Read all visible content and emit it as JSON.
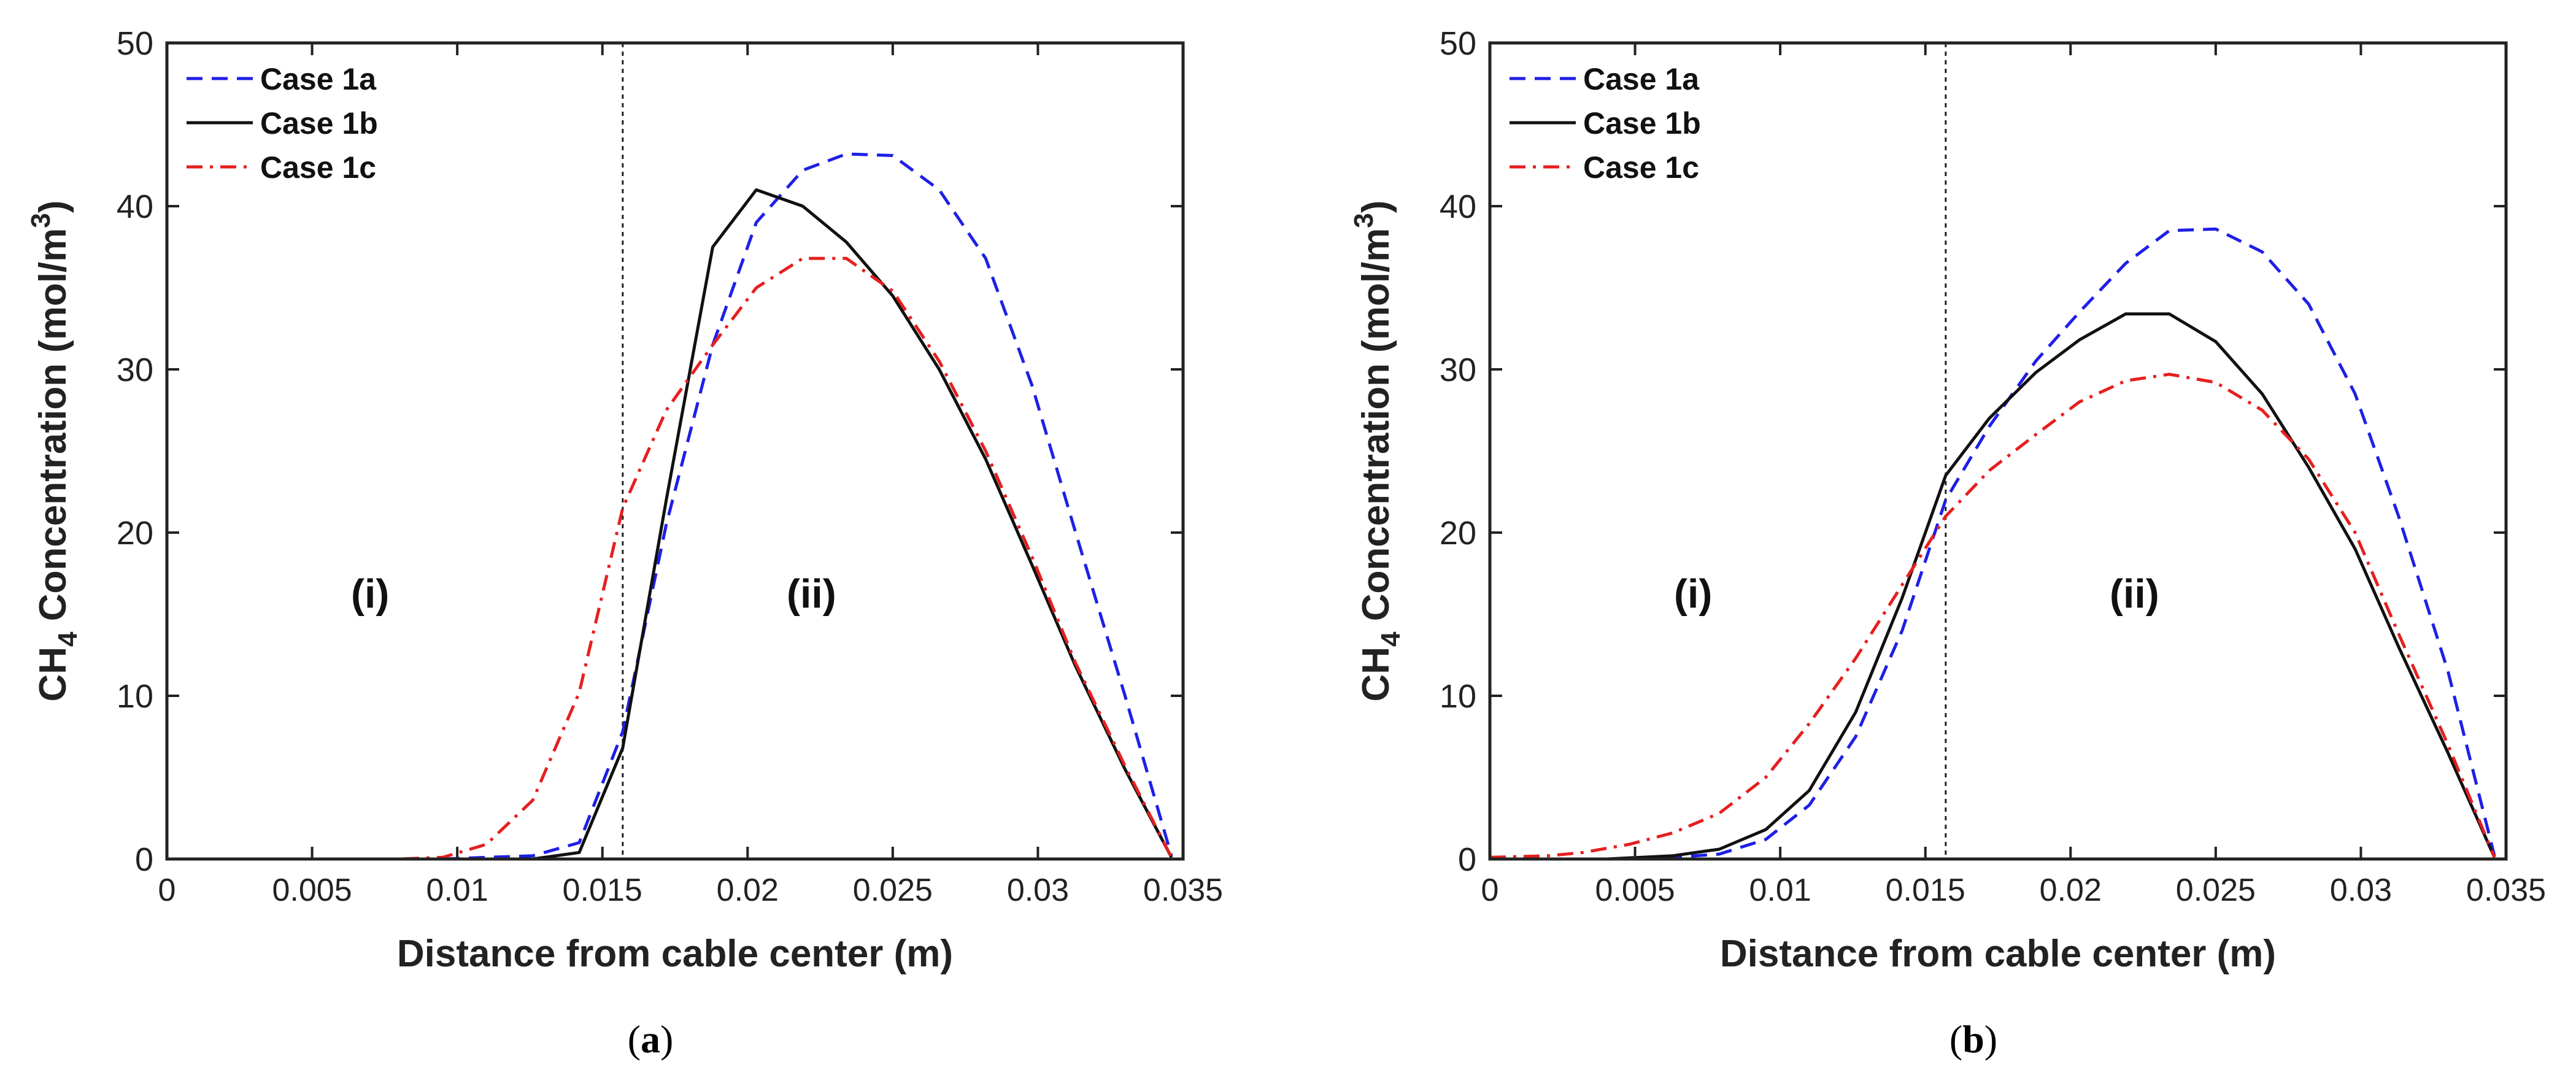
{
  "chart_data": [
    {
      "type": "line",
      "panel": "a",
      "caption_open": "(",
      "caption_letter": "a",
      "caption_close": ")",
      "xlabel": "Distance from cable center (m)",
      "ylabel_pre": "CH",
      "ylabel_sub": "4",
      "ylabel_mid": " Concentration (mol/m",
      "ylabel_sup": "3",
      "ylabel_post": ")",
      "xlim": [
        0,
        0.035
      ],
      "ylim": [
        0,
        50
      ],
      "xticks": [
        0,
        0.005,
        0.01,
        0.015,
        0.02,
        0.025,
        0.03,
        0.035
      ],
      "xtick_labels": [
        "0",
        "0.005",
        "0.01",
        "0.015",
        "0.02",
        "0.025",
        "0.03",
        "0.035"
      ],
      "yticks": [
        0,
        10,
        20,
        30,
        40,
        50
      ],
      "ytick_labels": [
        "0",
        "10",
        "20",
        "30",
        "40",
        "50"
      ],
      "boundary_x": 0.0157,
      "regions": [
        {
          "label": "(i)",
          "x": 0.007,
          "y": 16.3
        },
        {
          "label": "(ii)",
          "x": 0.0222,
          "y": 16.3
        }
      ],
      "legend_position": "top-left",
      "series": [
        {
          "name": "Case 1a",
          "color": "#1f1fe6",
          "style": "dashed",
          "x": [
            0,
            0.002,
            0.004,
            0.006,
            0.008,
            0.0095,
            0.011,
            0.0126,
            0.0142,
            0.0157,
            0.0172,
            0.0188,
            0.0203,
            0.0219,
            0.0234,
            0.025,
            0.0266,
            0.0282,
            0.0298,
            0.0313,
            0.033,
            0.0346
          ],
          "y": [
            0,
            0,
            0,
            0,
            0,
            0,
            0.1,
            0.2,
            1.0,
            7.8,
            20.5,
            31.5,
            39.0,
            42.2,
            43.2,
            43.1,
            41.0,
            36.8,
            29.0,
            20.0,
            10.0,
            0.2
          ]
        },
        {
          "name": "Case 1b",
          "color": "#111111",
          "style": "solid",
          "x": [
            0,
            0.002,
            0.004,
            0.006,
            0.008,
            0.0095,
            0.011,
            0.0126,
            0.0142,
            0.0157,
            0.0172,
            0.0188,
            0.0203,
            0.0219,
            0.0234,
            0.025,
            0.0266,
            0.0282,
            0.0298,
            0.0313,
            0.033,
            0.0346
          ],
          "y": [
            0,
            0,
            0,
            0,
            0,
            0,
            0,
            0,
            0.4,
            6.8,
            22.0,
            37.5,
            41.0,
            40.0,
            37.8,
            34.5,
            30.0,
            24.5,
            18.0,
            11.8,
            5.5,
            0.1
          ]
        },
        {
          "name": "Case 1c",
          "color": "#e61f1f",
          "style": "dashdot",
          "x": [
            0,
            0.002,
            0.004,
            0.006,
            0.008,
            0.0095,
            0.011,
            0.0126,
            0.0142,
            0.0157,
            0.0172,
            0.0188,
            0.0203,
            0.0219,
            0.0234,
            0.025,
            0.0266,
            0.0282,
            0.0298,
            0.0313,
            0.033,
            0.0346
          ],
          "y": [
            0,
            0,
            0,
            0,
            0,
            0.1,
            0.9,
            3.6,
            10.2,
            21.5,
            27.5,
            31.5,
            35.0,
            36.8,
            36.8,
            34.8,
            30.5,
            25.0,
            18.5,
            12.0,
            5.7,
            0.1
          ]
        }
      ]
    },
    {
      "type": "line",
      "panel": "b",
      "caption_open": "(",
      "caption_letter": "b",
      "caption_close": ")",
      "xlabel": "Distance from cable center (m)",
      "ylabel_pre": "CH",
      "ylabel_sub": "4",
      "ylabel_mid": " Concentration (mol/m",
      "ylabel_sup": "3",
      "ylabel_post": ")",
      "xlim": [
        0,
        0.035
      ],
      "ylim": [
        0,
        50
      ],
      "xticks": [
        0,
        0.005,
        0.01,
        0.015,
        0.02,
        0.025,
        0.03,
        0.035
      ],
      "xtick_labels": [
        "0",
        "0.005",
        "0.01",
        "0.015",
        "0.02",
        "0.025",
        "0.03",
        "0.035"
      ],
      "yticks": [
        0,
        10,
        20,
        30,
        40,
        50
      ],
      "ytick_labels": [
        "0",
        "10",
        "20",
        "30",
        "40",
        "50"
      ],
      "boundary_x": 0.0157,
      "regions": [
        {
          "label": "(i)",
          "x": 0.007,
          "y": 16.3
        },
        {
          "label": "(ii)",
          "x": 0.0222,
          "y": 16.3
        }
      ],
      "legend_position": "top-left",
      "series": [
        {
          "name": "Case 1a",
          "color": "#1f1fe6",
          "style": "dashed",
          "x": [
            0,
            0.002,
            0.004,
            0.0063,
            0.0079,
            0.0095,
            0.011,
            0.0126,
            0.0142,
            0.0157,
            0.0172,
            0.0188,
            0.0203,
            0.0219,
            0.0234,
            0.025,
            0.0266,
            0.0282,
            0.0298,
            0.0313,
            0.033,
            0.0346
          ],
          "y": [
            0,
            0,
            0,
            0.1,
            0.3,
            1.2,
            3.3,
            7.5,
            14.0,
            22.0,
            26.5,
            30.5,
            33.5,
            36.5,
            38.5,
            38.6,
            37.2,
            34.0,
            28.5,
            21.0,
            11.5,
            0.2
          ]
        },
        {
          "name": "Case 1b",
          "color": "#111111",
          "style": "solid",
          "x": [
            0,
            0.002,
            0.004,
            0.0063,
            0.0079,
            0.0095,
            0.011,
            0.0126,
            0.0142,
            0.0157,
            0.0172,
            0.0188,
            0.0203,
            0.0219,
            0.0234,
            0.025,
            0.0266,
            0.0282,
            0.0298,
            0.0313,
            0.033,
            0.0346
          ],
          "y": [
            0,
            0,
            0,
            0.2,
            0.6,
            1.8,
            4.2,
            9.0,
            16.0,
            23.5,
            27.0,
            29.8,
            31.8,
            33.4,
            33.4,
            31.7,
            28.5,
            24.0,
            19.0,
            13.0,
            6.5,
            0.1
          ]
        },
        {
          "name": "Case 1c",
          "color": "#e61f1f",
          "style": "dashdot",
          "x": [
            0,
            0.002,
            0.0032,
            0.0048,
            0.0063,
            0.0079,
            0.0095,
            0.011,
            0.0126,
            0.0142,
            0.0157,
            0.0172,
            0.0188,
            0.0203,
            0.0219,
            0.0234,
            0.025,
            0.0266,
            0.0282,
            0.0298,
            0.0313,
            0.033,
            0.0346
          ],
          "y": [
            0.1,
            0.2,
            0.4,
            0.9,
            1.6,
            2.8,
            5.0,
            8.3,
            12.3,
            16.8,
            21.0,
            23.8,
            26.0,
            28.0,
            29.3,
            29.7,
            29.2,
            27.5,
            24.5,
            20.0,
            13.8,
            7.0,
            0.1
          ]
        }
      ]
    }
  ]
}
